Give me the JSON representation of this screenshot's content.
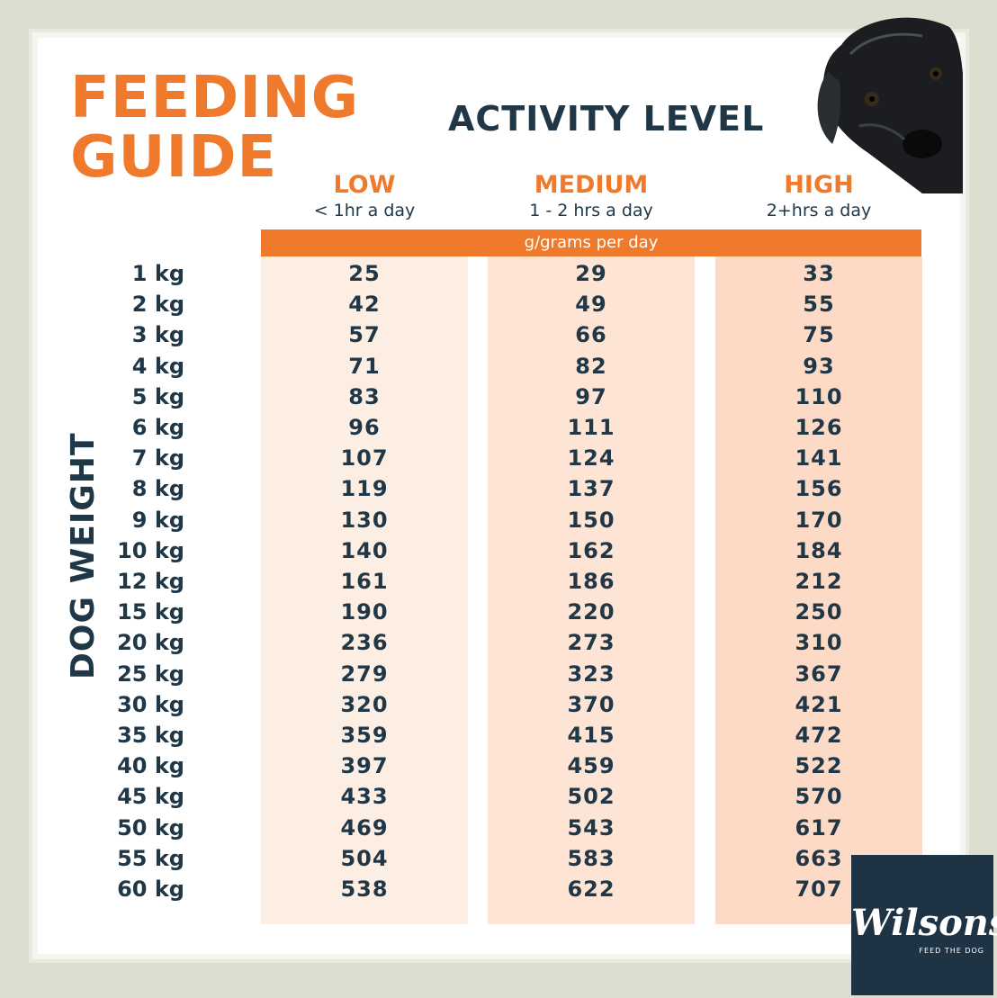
{
  "title": {
    "line1": "FEEDING",
    "line2": "GUIDE"
  },
  "activity_title": "ACTIVITY LEVEL",
  "unit_band": "g/grams per day",
  "weight_axis_label": "DOG WEIGHT",
  "brand": {
    "name": "Wilsons",
    "tagline": "FEED THE DOG",
    "bg_color": "#1e3344"
  },
  "colors": {
    "accent": "#ef7a2c",
    "text": "#1f3747",
    "col_light": "#fdeee4",
    "col_mid": "#fde4d4",
    "col_dark": "#fcdac5"
  },
  "chart_data": {
    "type": "table",
    "columns": [
      {
        "name": "LOW",
        "detail": "< 1hr a day"
      },
      {
        "name": "MEDIUM",
        "detail": "1 - 2 hrs a day"
      },
      {
        "name": "HIGH",
        "detail": "2+hrs a day"
      }
    ],
    "rows": [
      {
        "weight": "1 kg",
        "values": [
          25,
          29,
          33
        ]
      },
      {
        "weight": "2 kg",
        "values": [
          42,
          49,
          55
        ]
      },
      {
        "weight": "3 kg",
        "values": [
          57,
          66,
          75
        ]
      },
      {
        "weight": "4 kg",
        "values": [
          71,
          82,
          93
        ]
      },
      {
        "weight": "5 kg",
        "values": [
          83,
          97,
          110
        ]
      },
      {
        "weight": "6 kg",
        "values": [
          96,
          111,
          126
        ]
      },
      {
        "weight": "7 kg",
        "values": [
          107,
          124,
          141
        ]
      },
      {
        "weight": "8 kg",
        "values": [
          119,
          137,
          156
        ]
      },
      {
        "weight": "9 kg",
        "values": [
          130,
          150,
          170
        ]
      },
      {
        "weight": "10 kg",
        "values": [
          140,
          162,
          184
        ]
      },
      {
        "weight": "12 kg",
        "values": [
          161,
          186,
          212
        ]
      },
      {
        "weight": "15 kg",
        "values": [
          190,
          220,
          250
        ]
      },
      {
        "weight": "20 kg",
        "values": [
          236,
          273,
          310
        ]
      },
      {
        "weight": "25 kg",
        "values": [
          279,
          323,
          367
        ]
      },
      {
        "weight": "30 kg",
        "values": [
          320,
          370,
          421
        ]
      },
      {
        "weight": "35 kg",
        "values": [
          359,
          415,
          472
        ]
      },
      {
        "weight": "40 kg",
        "values": [
          397,
          459,
          522
        ]
      },
      {
        "weight": "45 kg",
        "values": [
          433,
          502,
          570
        ]
      },
      {
        "weight": "50 kg",
        "values": [
          469,
          543,
          617
        ]
      },
      {
        "weight": "55 kg",
        "values": [
          504,
          583,
          663
        ]
      },
      {
        "weight": "60 kg",
        "values": [
          538,
          622,
          707
        ]
      }
    ]
  }
}
